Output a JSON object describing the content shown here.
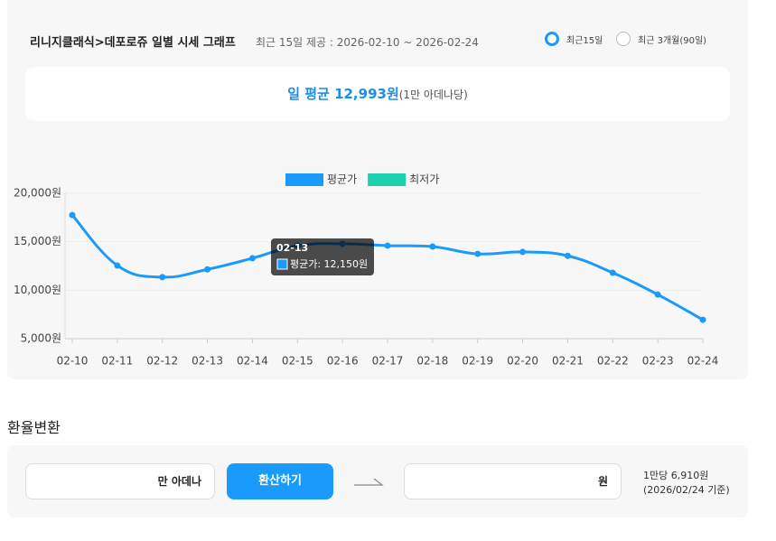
{
  "header": {
    "title": "리니지클래식>데포로쥬 일별 시세 그래프",
    "subtitle": "최근 15일 제공 : 2026-02-10 ~ 2026-02-24",
    "options": [
      "최근15일",
      "최근 3개월(90일)"
    ]
  },
  "summary": {
    "label": "일 평균 12,993원",
    "note": "(1만 아데나당)"
  },
  "chart_data": {
    "type": "line",
    "categories": [
      "02-10",
      "02-11",
      "02-12",
      "02-13",
      "02-14",
      "02-15",
      "02-16",
      "02-17",
      "02-18",
      "02-19",
      "02-20",
      "02-21",
      "02-22",
      "02-23",
      "02-24"
    ],
    "series": [
      {
        "name": "평균가",
        "color": "#1a9bfc",
        "values": [
          17750,
          12550,
          11350,
          12150,
          13300,
          14600,
          14800,
          14600,
          14500,
          13750,
          13950,
          13550,
          11800,
          9550,
          6950
        ]
      },
      {
        "name": "최저가",
        "color": "#1ccfad",
        "values": [
          null,
          null,
          null,
          null,
          null,
          null,
          null,
          null,
          null,
          null,
          null,
          null,
          null,
          null,
          null
        ]
      }
    ],
    "ylim": [
      5000,
      20000
    ],
    "yticks": [
      {
        "value": 5000,
        "label": "5,000원"
      },
      {
        "value": 10000,
        "label": "10,000원"
      },
      {
        "value": 15000,
        "label": "15,000원"
      },
      {
        "value": 20000,
        "label": "20,000원"
      }
    ],
    "grid": true,
    "tooltip": {
      "title": "02-13",
      "text": "평균가: 12,150원"
    }
  },
  "converter": {
    "title": "환율변환",
    "input_unit": "만 아데나",
    "button": "환산하기",
    "output_unit": "원",
    "rate": "1만당 6,910원",
    "date": "(2026/02/24 기준)"
  }
}
